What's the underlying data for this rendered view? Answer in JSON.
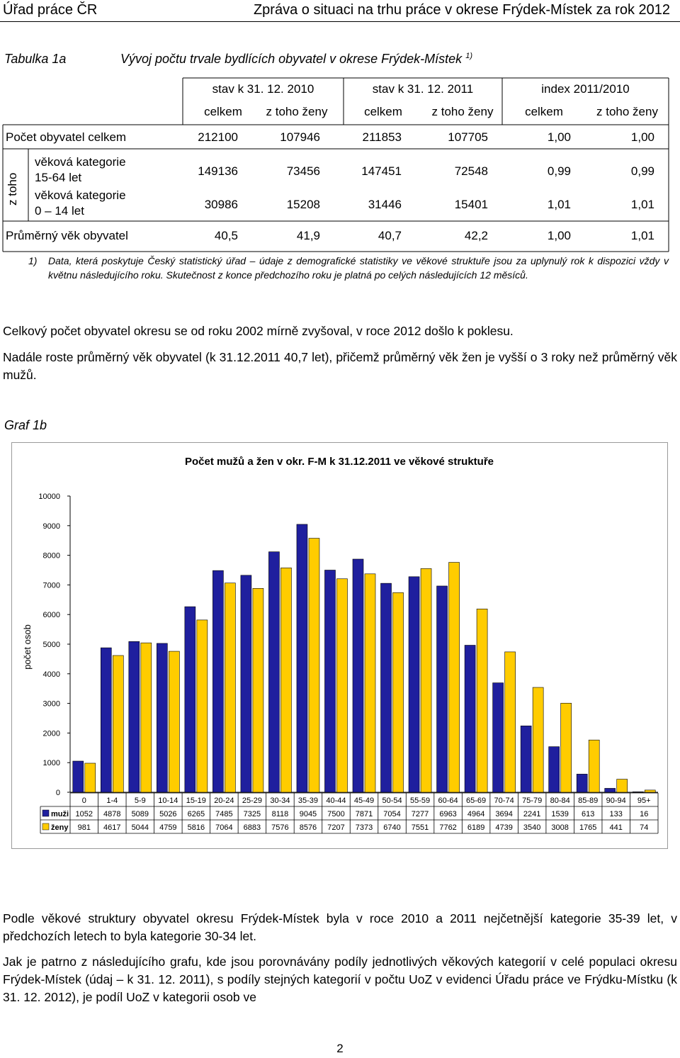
{
  "header": {
    "left": "Úřad práce ČR",
    "right": "Zpráva o situaci na trhu práce v okrese Frýdek-Místek za rok 2012"
  },
  "table1": {
    "label": "Tabulka 1a",
    "title": "Vývoj počtu trvale bydlících obyvatel v okrese Frýdek-Místek",
    "title_sup": "1)",
    "group_headers": [
      "stav k 31. 12. 2010",
      "stav k 31. 12. 2011",
      "index 2011/2010"
    ],
    "sub_headers": [
      "celkem",
      "z toho ženy",
      "celkem",
      "z toho ženy",
      "celkem",
      "z toho ženy"
    ],
    "z_toho": "z toho",
    "rows": [
      {
        "label": "Počet obyvatel celkem",
        "values": [
          "212100",
          "107946",
          "211853",
          "107705",
          "1,00",
          "1,00"
        ]
      },
      {
        "label_line1": "věková kategorie",
        "label_line2": "15-64 let",
        "values": [
          "149136",
          "73456",
          "147451",
          "72548",
          "0,99",
          "0,99"
        ]
      },
      {
        "label_line1": "věková kategorie",
        "label_line2": "0 – 14 let",
        "values": [
          "30986",
          "15208",
          "31446",
          "15401",
          "1,01",
          "1,01"
        ]
      },
      {
        "label": "Průměrný věk obyvatel",
        "values": [
          "40,5",
          "41,9",
          "40,7",
          "42,2",
          "1,00",
          "1,01"
        ]
      }
    ],
    "footnote_num": "1)",
    "footnote": "Data, která poskytuje Český statistický úřad – údaje z demografické statistiky ve věkové struktuře jsou za uplynulý rok k dispozici vždy v květnu následujícího roku. Skutečnost z konce předchozího roku je platná po celých následujících 12 měsíců."
  },
  "text1": "Celkový počet obyvatel okresu se od roku 2002 mírně zvyšoval, v roce 2012 došlo k poklesu.",
  "text2": "Nadále roste průměrný věk obyvatel (k 31.12.2011 40,7 let), přičemž průměrný věk žen je vyšší o 3 roky než průměrný věk mužů.",
  "graf_label": "Graf 1b",
  "chart_data": {
    "type": "bar",
    "title": "Počet mužů a žen v okr. F-M k 31.12.2011 ve věkové struktuře",
    "ylabel": "počet osob",
    "xlabel": "",
    "ylim": [
      0,
      10000
    ],
    "yticks": [
      0,
      1000,
      2000,
      3000,
      4000,
      5000,
      6000,
      7000,
      8000,
      9000,
      10000
    ],
    "grid": false,
    "categories": [
      "0",
      "1-4",
      "5-9",
      "10-14",
      "15-19",
      "20-24",
      "25-29",
      "30-34",
      "35-39",
      "40-44",
      "45-49",
      "50-54",
      "55-59",
      "60-64",
      "65-69",
      "70-74",
      "75-79",
      "80-84",
      "85-89",
      "90-94",
      "95+"
    ],
    "series": [
      {
        "name": "muži",
        "color": "#1f1f9e",
        "values": [
          1052,
          4878,
          5089,
          5026,
          6265,
          7485,
          7325,
          8118,
          9045,
          7500,
          7871,
          7054,
          7277,
          6963,
          4964,
          3694,
          2241,
          1539,
          613,
          133,
          16
        ]
      },
      {
        "name": "ženy",
        "color": "#ffcc00",
        "values": [
          981,
          4617,
          5044,
          4759,
          5816,
          7064,
          6883,
          7576,
          8576,
          7207,
          7373,
          6740,
          7551,
          7762,
          6189,
          4739,
          3540,
          3008,
          1765,
          441,
          74
        ]
      }
    ]
  },
  "text3": "Podle věkové struktury obyvatel okresu Frýdek-Místek byla v roce 2010 a 2011 nejčetnější kategorie 35-39 let, v předchozích letech to byla kategorie 30-34 let.",
  "text4": "Jak je patrno z následujícího grafu, kde jsou porovnávány podíly jednotlivých věkových kategorií v celé populaci okresu Frýdek-Místek (údaj – k 31. 12. 2011), s podíly stejných kategorií v počtu UoZ v evidenci Úřadu práce ve Frýdku-Místku (k 31. 12. 2012), je podíl UoZ v kategorii osob ve",
  "page_number": "2"
}
